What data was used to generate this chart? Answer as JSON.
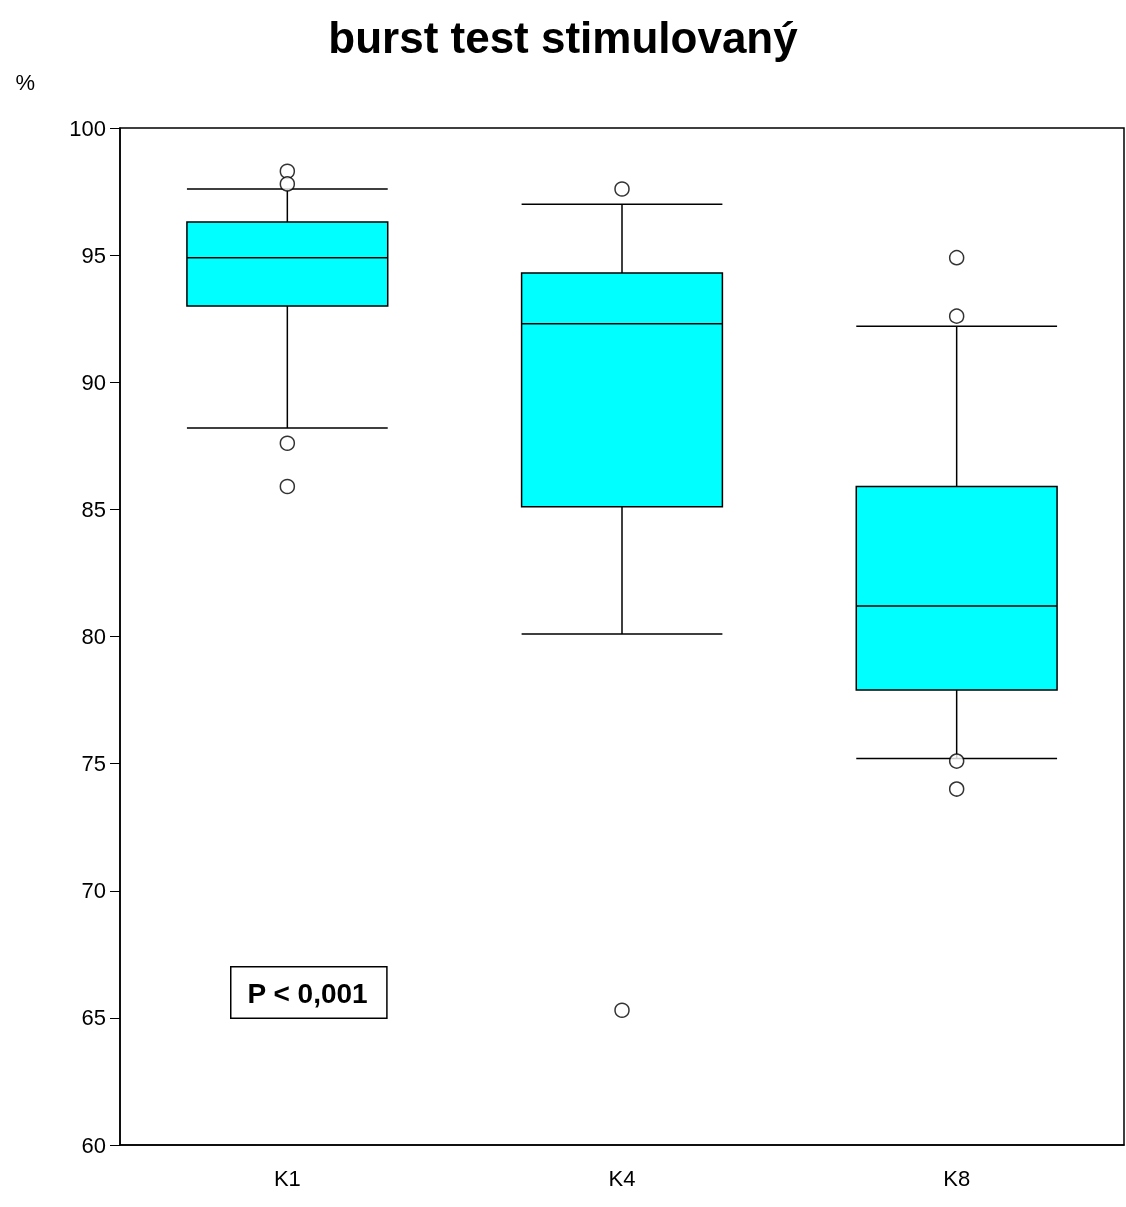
{
  "chart_data": {
    "type": "box",
    "title": "burst test stimulovaný",
    "ylabel": "%",
    "categories": [
      "K1",
      "K4",
      "K8"
    ],
    "color": "#00ffff",
    "boxes": [
      {
        "low": 88.2,
        "q1": 93.0,
        "median": 94.9,
        "q3": 96.3,
        "high": 97.6,
        "outliers": [
          98.3,
          97.8,
          87.6,
          85.9
        ]
      },
      {
        "low": 80.1,
        "q1": 85.1,
        "median": 92.3,
        "q3": 94.3,
        "high": 97.0,
        "outliers": [
          97.6,
          65.3
        ]
      },
      {
        "low": 75.2,
        "q1": 77.9,
        "median": 81.2,
        "q3": 85.9,
        "high": 92.2,
        "outliers": [
          94.9,
          92.6,
          75.1,
          74.0
        ]
      }
    ],
    "ylim": [
      60,
      100
    ],
    "yticks": [
      60,
      65,
      70,
      75,
      80,
      85,
      90,
      95,
      100
    ],
    "grid": false,
    "marker": "circle",
    "annotations": [
      "P < 0,001"
    ]
  }
}
